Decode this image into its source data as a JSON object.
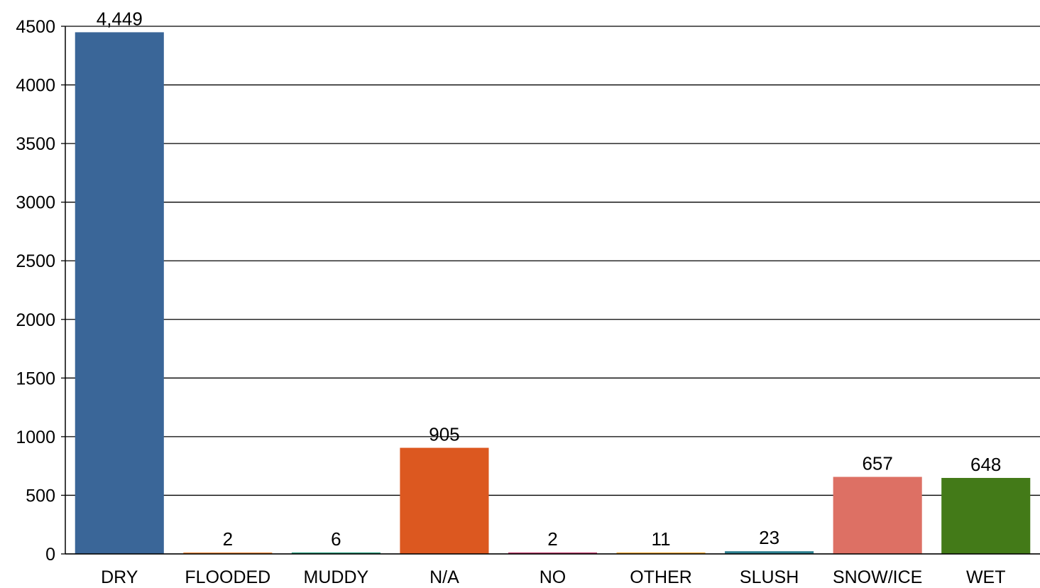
{
  "chart_data": {
    "type": "bar",
    "categories": [
      "DRY",
      "FLOODED",
      "MUDDY",
      "N/A",
      "NO",
      "OTHER",
      "SLUSH",
      "SNOW/ICE",
      "WET"
    ],
    "values": [
      4449,
      2,
      6,
      905,
      2,
      11,
      23,
      657,
      648
    ],
    "value_labels": [
      "4,449",
      "2",
      "6",
      "905",
      "2",
      "11",
      "23",
      "657",
      "648"
    ],
    "colors": [
      "#3a6698",
      "#ed8939",
      "#1e9c7a",
      "#dc5820",
      "#c33a6c",
      "#f0a72d",
      "#2c7f8f",
      "#dd7064",
      "#437a18"
    ],
    "title": "",
    "xlabel": "",
    "ylabel": "",
    "ylim": [
      0,
      4500
    ],
    "yticks": [
      0,
      500,
      1000,
      1500,
      2000,
      2500,
      3000,
      3500,
      4000,
      4500
    ],
    "grid": "horizontal",
    "legend": "none"
  }
}
